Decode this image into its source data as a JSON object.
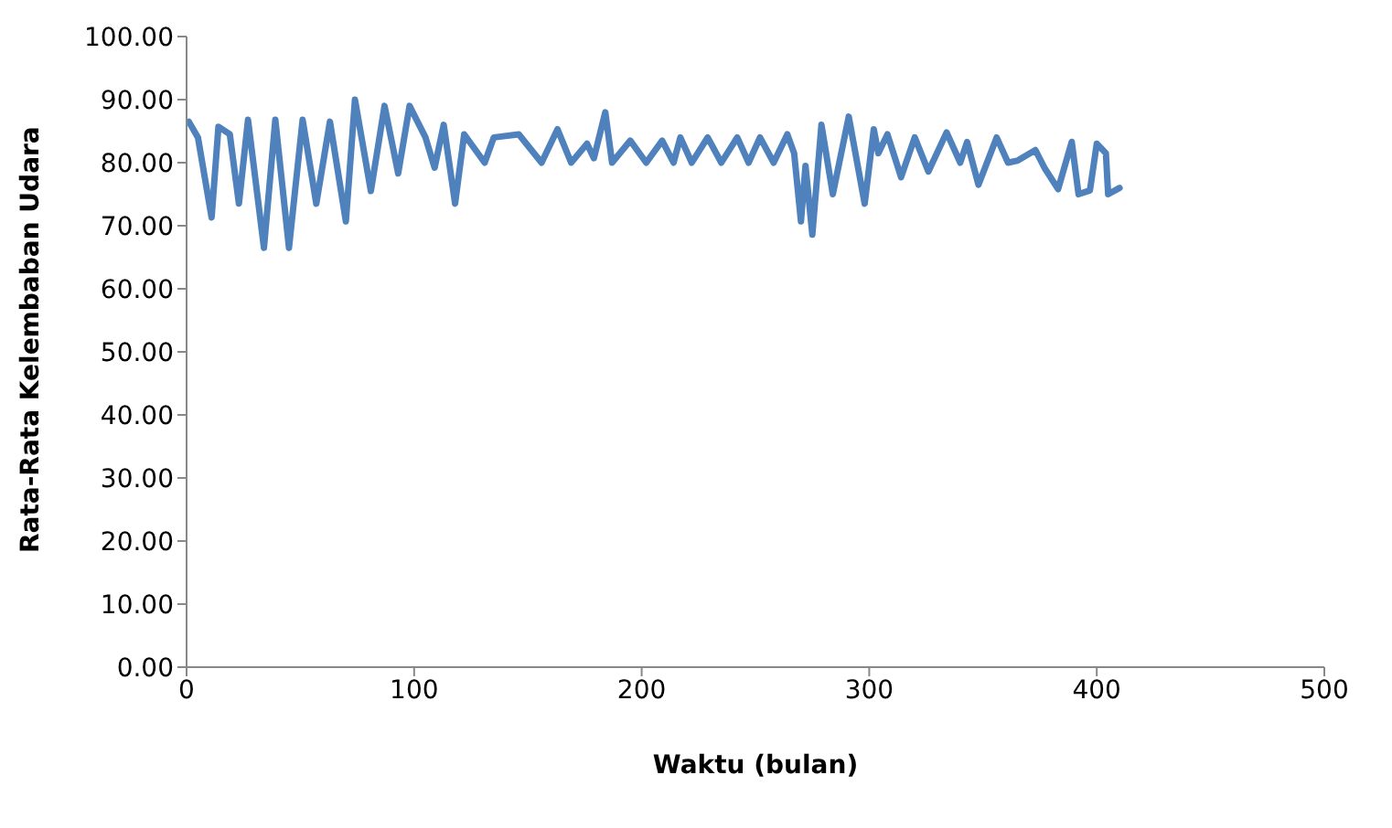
{
  "chart_data": {
    "type": "line",
    "xlabel": "Waktu (bulan)",
    "ylabel": "Rata-Rata  Kelembaban Udara",
    "x": [
      1,
      5,
      11,
      14,
      19,
      23,
      27,
      34,
      39,
      45,
      51,
      57,
      63,
      70,
      74,
      81,
      87,
      93,
      98,
      105,
      109,
      113,
      118,
      122,
      127,
      131,
      135,
      146,
      156,
      163,
      169,
      176,
      179,
      184,
      187,
      195,
      202,
      209,
      214,
      217,
      222,
      229,
      235,
      242,
      247,
      252,
      258,
      264,
      267,
      270,
      272,
      275,
      279,
      284,
      291,
      298,
      302,
      304,
      308,
      314,
      320,
      326,
      334,
      340,
      343,
      348,
      356,
      361,
      365,
      373,
      377,
      383,
      389,
      392,
      397,
      400,
      404,
      405,
      410
    ],
    "series": [
      {
        "color": "#4f81bd",
        "values": [
          86.5,
          84,
          71.3,
          85.7,
          84.5,
          73.5,
          86.8,
          66.5,
          86.8,
          66.5,
          86.8,
          73.5,
          86.5,
          70.7,
          90,
          75.5,
          89,
          78.3,
          89,
          84,
          79.2,
          86,
          73.5,
          84.5,
          82,
          80,
          84,
          84.5,
          80,
          85.3,
          80,
          83,
          80.7,
          88,
          80,
          83.5,
          80,
          83.5,
          80,
          84,
          80,
          84,
          80,
          84,
          80,
          84,
          80,
          84.5,
          81.5,
          70.7,
          79.5,
          68.6,
          86,
          75,
          87.3,
          73.5,
          85.3,
          81.5,
          84.5,
          77.7,
          84,
          78.6,
          84.8,
          80,
          83.3,
          76.5,
          84,
          80,
          80.3,
          82,
          79.2,
          75.8,
          83.3,
          75,
          75.6,
          83,
          81.5,
          75,
          76
        ]
      }
    ],
    "xlim": [
      0,
      500
    ],
    "xticks": [
      0,
      100,
      200,
      300,
      400,
      500
    ],
    "ylim": [
      0,
      100
    ],
    "yticks": [
      {
        "value": 0,
        "label": "0.00"
      },
      {
        "value": 10,
        "label": "10.00"
      },
      {
        "value": 20,
        "label": "20.00"
      },
      {
        "value": 30,
        "label": "30.00"
      },
      {
        "value": 40,
        "label": "40.00"
      },
      {
        "value": 50,
        "label": "50.00"
      },
      {
        "value": 60,
        "label": "60.00"
      },
      {
        "value": 70,
        "label": "70.00"
      },
      {
        "value": 80,
        "label": "80.00"
      },
      {
        "value": 90,
        "label": "90.00"
      },
      {
        "value": 100,
        "label": "100.00"
      }
    ],
    "grid": false,
    "legend": false,
    "marker": "none",
    "line_style": "solid"
  }
}
